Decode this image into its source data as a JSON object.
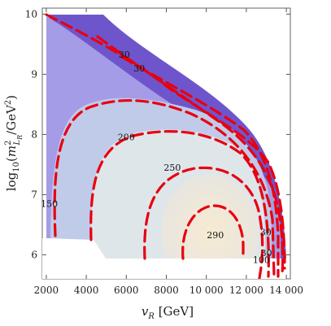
{
  "chart_data": {
    "type": "contour",
    "x": {
      "label": "v_R [GeV]",
      "range": [
        1800,
        14200
      ],
      "ticks": [
        2000,
        4000,
        6000,
        8000,
        10000,
        12000,
        14000
      ],
      "tick_labels": [
        "2000",
        "4000",
        "6000",
        "8000",
        "10 000",
        "12 000",
        "14 000"
      ]
    },
    "y": {
      "label": "log10(m^2_{L_R}/GeV^2)",
      "range": [
        5.6,
        10.1
      ],
      "ticks": [
        6,
        7,
        8,
        9,
        10
      ],
      "tick_labels": [
        "6",
        "7",
        "8",
        "9",
        "10"
      ]
    },
    "contour_levels": [
      "30",
      "100",
      "150",
      "200",
      "250",
      "290"
    ],
    "contour_labels": [
      {
        "text": "30",
        "x": 5900,
        "y": 9.33
      },
      {
        "text": "30",
        "x": 6650,
        "y": 9.1
      },
      {
        "text": "150",
        "x": 2150,
        "y": 6.85
      },
      {
        "text": "200",
        "x": 6000,
        "y": 7.96
      },
      {
        "text": "250",
        "x": 8300,
        "y": 7.45
      },
      {
        "text": "290",
        "x": 10450,
        "y": 6.33
      },
      {
        "text": "30",
        "x": 12970,
        "y": 6.38
      },
      {
        "text": "30",
        "x": 13000,
        "y": 6.03
      },
      {
        "text": "100",
        "x": 12750,
        "y": 5.92
      }
    ],
    "line_color": "#e8000f",
    "fill_colors": [
      "#6f55cc",
      "#a49ce6",
      "#bfcbe8",
      "#dfe6ea",
      "#f1e9d5"
    ],
    "grid": false,
    "legend": "none"
  }
}
